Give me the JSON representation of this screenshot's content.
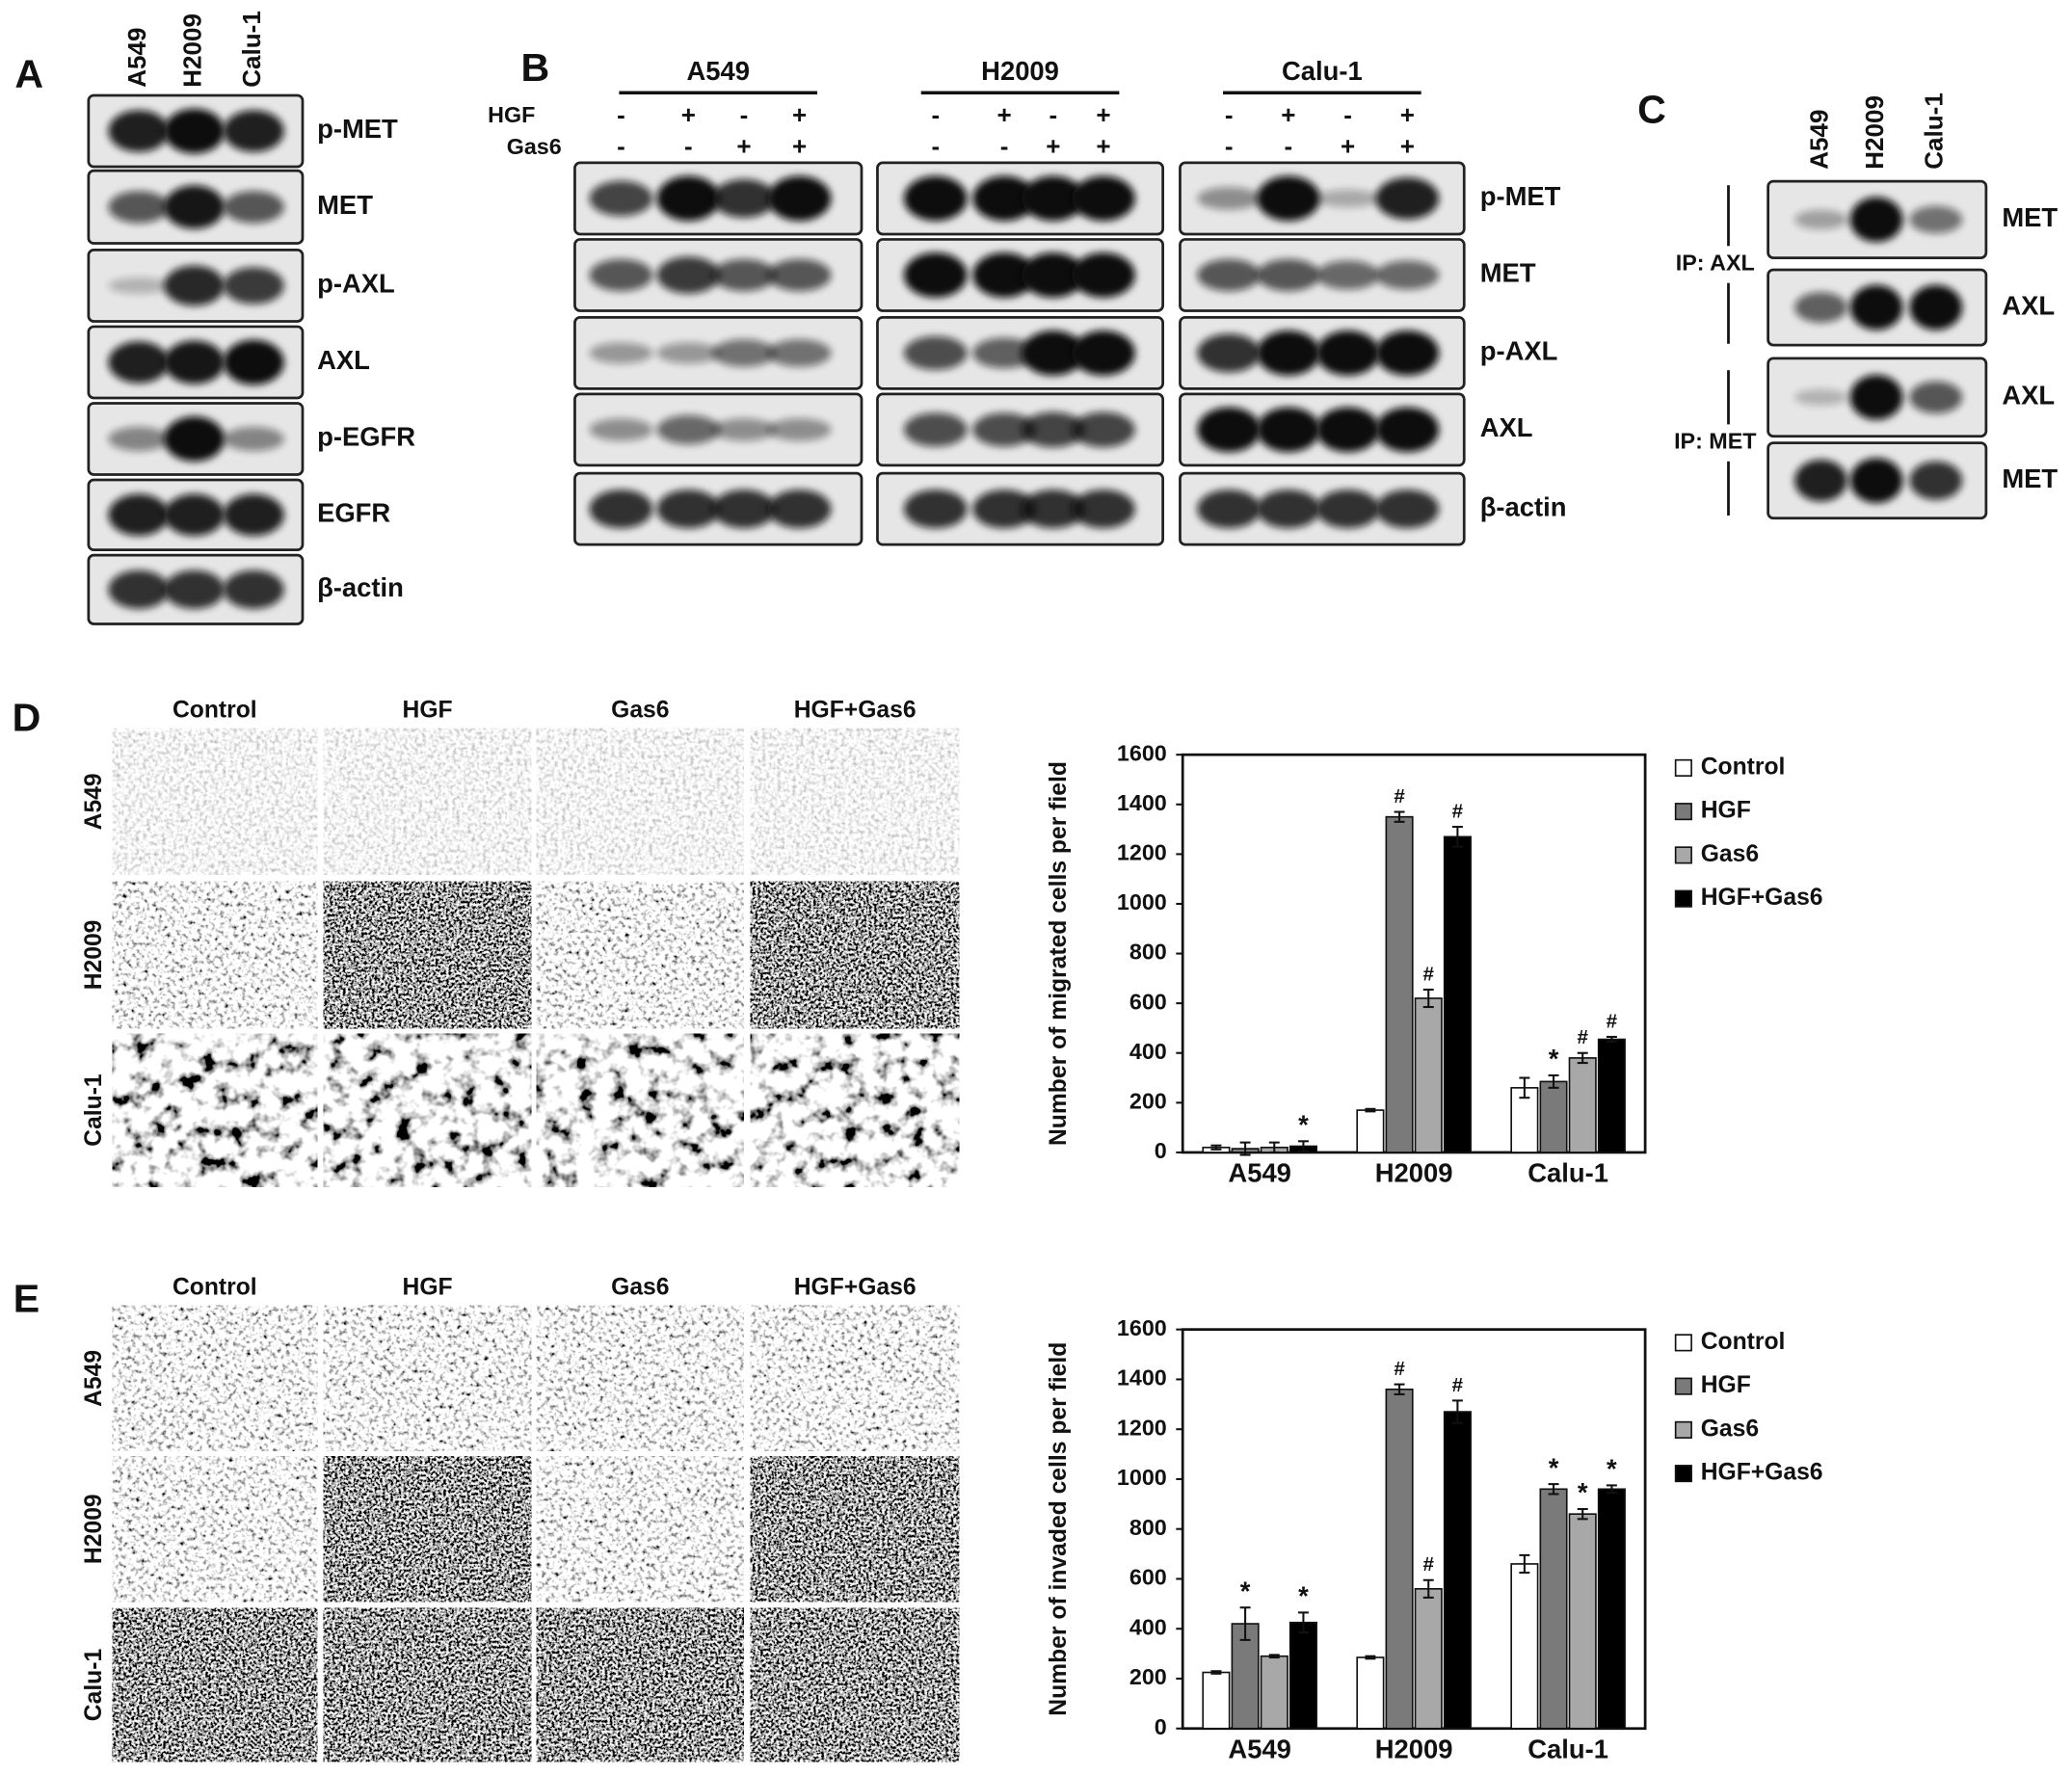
{
  "figure": {
    "panel_labels": [
      "A",
      "B",
      "C",
      "D",
      "E"
    ]
  },
  "panel_a": {
    "lanes": [
      "A549",
      "H2009",
      "Calu-1"
    ],
    "bands": [
      "p-MET",
      "MET",
      "p-AXL",
      "AXL",
      "p-EGFR",
      "EGFR",
      "β-actin"
    ]
  },
  "panel_b": {
    "cell_lines": [
      "A549",
      "H2009",
      "Calu-1"
    ],
    "treatments": [
      {
        "name": "HGF",
        "signs": [
          "-",
          "+",
          "-",
          "+"
        ]
      },
      {
        "name": "Gas6",
        "signs": [
          "-",
          "-",
          "+",
          "+"
        ]
      }
    ],
    "bands": [
      "p-MET",
      "MET",
      "p-AXL",
      "AXL",
      "β-actin"
    ]
  },
  "panel_c": {
    "lanes": [
      "A549",
      "H2009",
      "Calu-1"
    ],
    "groups": [
      {
        "label": "IP: AXL",
        "bands": [
          "MET",
          "AXL"
        ]
      },
      {
        "label": "IP: MET",
        "bands": [
          "AXL",
          "MET"
        ]
      }
    ]
  },
  "panel_d": {
    "columns": [
      "Control",
      "HGF",
      "Gas6",
      "HGF+Gas6"
    ],
    "rows": [
      "A549",
      "H2009",
      "Calu-1"
    ]
  },
  "panel_e": {
    "columns": [
      "Control",
      "HGF",
      "Gas6",
      "HGF+Gas6"
    ],
    "rows": [
      "A549",
      "H2009",
      "Calu-1"
    ]
  },
  "chart_data": [
    {
      "type": "bar",
      "ylabel": "Number of migrated cells per field",
      "categories": [
        "A549",
        "H2009",
        "Calu-1"
      ],
      "ylim": [
        0,
        1600
      ],
      "yticks": [
        0,
        200,
        400,
        600,
        800,
        1000,
        1200,
        1400,
        1600
      ],
      "legend": "right",
      "series": [
        {
          "name": "Control",
          "color": "#ffffff",
          "values": [
            20,
            170,
            260
          ],
          "errors": [
            8,
            5,
            40
          ],
          "markers": [
            null,
            null,
            null
          ]
        },
        {
          "name": "HGF",
          "color": "#7a7a7a",
          "values": [
            15,
            1350,
            285
          ],
          "errors": [
            25,
            20,
            25
          ],
          "markers": [
            null,
            "#",
            "*"
          ]
        },
        {
          "name": "Gas6",
          "color": "#a8a8a8",
          "values": [
            20,
            620,
            380
          ],
          "errors": [
            20,
            35,
            20
          ],
          "markers": [
            null,
            "#",
            "#"
          ]
        },
        {
          "name": "HGF+Gas6",
          "color": "#000000",
          "values": [
            25,
            1270,
            455
          ],
          "errors": [
            20,
            40,
            10
          ],
          "markers": [
            "*",
            "#",
            "#"
          ]
        }
      ]
    },
    {
      "type": "bar",
      "ylabel": "Number of invaded cells per field",
      "categories": [
        "A549",
        "H2009",
        "Calu-1"
      ],
      "ylim": [
        0,
        1600
      ],
      "yticks": [
        0,
        200,
        400,
        600,
        800,
        1000,
        1200,
        1400,
        1600
      ],
      "legend": "right",
      "series": [
        {
          "name": "Control",
          "color": "#ffffff",
          "values": [
            225,
            285,
            660
          ],
          "errors": [
            5,
            5,
            35
          ],
          "markers": [
            null,
            null,
            null
          ]
        },
        {
          "name": "HGF",
          "color": "#7a7a7a",
          "values": [
            420,
            1360,
            960
          ],
          "errors": [
            65,
            20,
            20
          ],
          "markers": [
            "*",
            "#",
            "*"
          ]
        },
        {
          "name": "Gas6",
          "color": "#a8a8a8",
          "values": [
            290,
            560,
            860
          ],
          "errors": [
            5,
            35,
            20
          ],
          "markers": [
            null,
            "#",
            "*"
          ]
        },
        {
          "name": "HGF+Gas6",
          "color": "#000000",
          "values": [
            425,
            1270,
            960
          ],
          "errors": [
            40,
            45,
            15
          ],
          "markers": [
            "*",
            "#",
            "*"
          ]
        }
      ]
    }
  ]
}
